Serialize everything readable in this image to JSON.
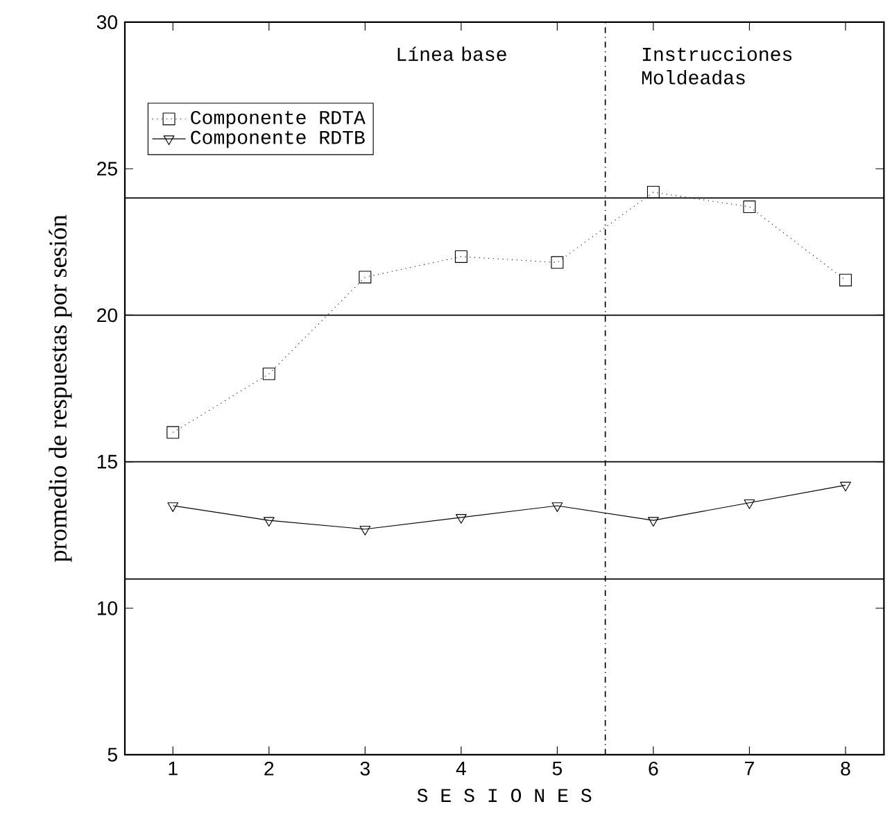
{
  "chart_data": {
    "type": "line",
    "xlabel": "S E S I O N E S",
    "ylabel": "promedio de respuestas por sesión",
    "x": [
      1,
      2,
      3,
      4,
      5,
      6,
      7,
      8
    ],
    "series": [
      {
        "name": "Componente RDTA",
        "color": "#000000",
        "marker": "square",
        "line_style": "dotted",
        "values": [
          16.0,
          18.0,
          21.3,
          22.0,
          21.8,
          24.2,
          23.7,
          21.2
        ]
      },
      {
        "name": "Componente RDTB",
        "color": "#000000",
        "marker": "triangle",
        "line_style": "solid",
        "values": [
          13.5,
          13.0,
          12.7,
          13.1,
          13.5,
          13.0,
          13.6,
          14.2
        ]
      }
    ],
    "xlim": [
      0.5,
      8.4
    ],
    "ylim": [
      5,
      30
    ],
    "xticks": [
      1,
      2,
      3,
      4,
      5,
      6,
      7,
      8
    ],
    "yticks": [
      5,
      10,
      15,
      20,
      25,
      30
    ],
    "ref_lines": [
      {
        "axis": "y",
        "value": 24,
        "line_style": "solid"
      },
      {
        "axis": "y",
        "value": 20,
        "line_style": "solid"
      },
      {
        "axis": "y",
        "value": 15,
        "line_style": "solid"
      },
      {
        "axis": "y",
        "value": 11,
        "line_style": "solid"
      },
      {
        "axis": "x",
        "value": 5.5,
        "line_style": "dashed"
      }
    ],
    "annotations": [
      "Línea base",
      "Instrucciones Moldeadas"
    ],
    "legend": "top left"
  }
}
